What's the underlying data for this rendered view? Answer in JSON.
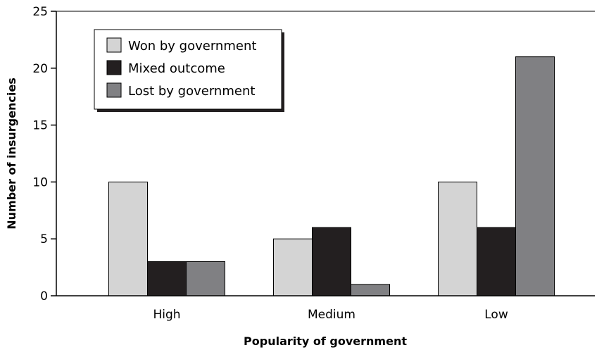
{
  "chart_data": {
    "type": "bar",
    "categories": [
      "High",
      "Medium",
      "Low"
    ],
    "series": [
      {
        "name": "Won by government",
        "values": [
          10,
          5,
          10
        ],
        "color": "#d4d4d4"
      },
      {
        "name": "Mixed outcome",
        "values": [
          3,
          6,
          6
        ],
        "color": "#231f20"
      },
      {
        "name": "Lost by government",
        "values": [
          3,
          1,
          21
        ],
        "color": "#808083"
      }
    ],
    "xlabel": "Popularity of government",
    "ylabel": "Number of insurgencies",
    "ylim": [
      0,
      25
    ],
    "yticks": [
      0,
      5,
      10,
      15,
      20,
      25
    ],
    "grid": false,
    "legend_position": "top-left"
  }
}
